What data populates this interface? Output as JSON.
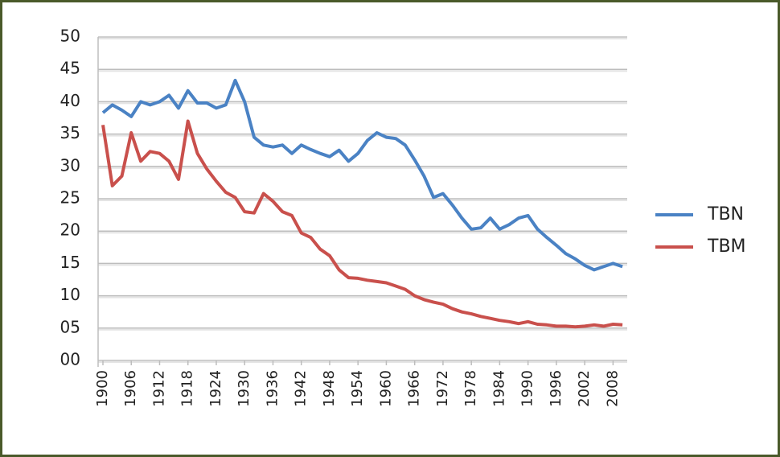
{
  "chart_data": {
    "type": "line",
    "x": [
      1900,
      1902,
      1904,
      1906,
      1908,
      1910,
      1912,
      1914,
      1916,
      1918,
      1920,
      1922,
      1924,
      1926,
      1928,
      1930,
      1932,
      1934,
      1936,
      1938,
      1940,
      1942,
      1944,
      1946,
      1948,
      1950,
      1952,
      1954,
      1956,
      1958,
      1960,
      1962,
      1964,
      1966,
      1968,
      1970,
      1972,
      1974,
      1976,
      1978,
      1980,
      1982,
      1984,
      1986,
      1988,
      1990,
      1992,
      1994,
      1996,
      1998,
      2000,
      2002,
      2004,
      2006,
      2008,
      2010
    ],
    "series": [
      {
        "name": "TBN",
        "color": "#4a82c4",
        "values": [
          38.3,
          39.5,
          38.7,
          37.7,
          40,
          39.5,
          40,
          41,
          39,
          41.7,
          39.8,
          39.8,
          39,
          39.5,
          43.3,
          40,
          34.5,
          33.3,
          33,
          33.3,
          32,
          33.3,
          32.6,
          32,
          31.5,
          32.5,
          30.8,
          32,
          34,
          35.2,
          34.5,
          34.3,
          33.3,
          31,
          28.5,
          25.2,
          25.8,
          24,
          22,
          20.3,
          20.5,
          22,
          20.3,
          21,
          22,
          22.4,
          20.3,
          19,
          17.8,
          16.5,
          15.7,
          14.7,
          14,
          14.5,
          15,
          14.5
        ]
      },
      {
        "name": "TBM",
        "color": "#c9504c",
        "values": [
          36.4,
          27,
          28.5,
          35.2,
          30.8,
          32.3,
          32,
          30.8,
          28,
          37,
          32,
          29.6,
          27.7,
          26,
          25.2,
          23,
          22.8,
          25.8,
          24.6,
          23,
          22.4,
          19.7,
          19,
          17.2,
          16.2,
          14,
          12.8,
          12.7,
          12.4,
          12.2,
          12,
          11.5,
          11,
          10,
          9.4,
          9,
          8.7,
          8,
          7.5,
          7.2,
          6.8,
          6.5,
          6.2,
          6,
          5.7,
          6,
          5.6,
          5.5,
          5.3,
          5.3,
          5.2,
          5.3,
          5.5,
          5.3,
          5.6,
          5.5
        ]
      }
    ],
    "xlim": [
      1900,
      2011
    ],
    "xticks": [
      1900,
      1906,
      1912,
      1918,
      1924,
      1930,
      1936,
      1942,
      1948,
      1954,
      1960,
      1966,
      1972,
      1978,
      1984,
      1990,
      1996,
      2002,
      2008
    ],
    "ylim": [
      0,
      50
    ],
    "yticks": [
      {
        "value": 0,
        "label": "00"
      },
      {
        "value": 5,
        "label": "05"
      },
      10,
      15,
      20,
      25,
      30,
      35,
      40,
      45,
      50
    ],
    "grid": true,
    "legend": "right"
  }
}
